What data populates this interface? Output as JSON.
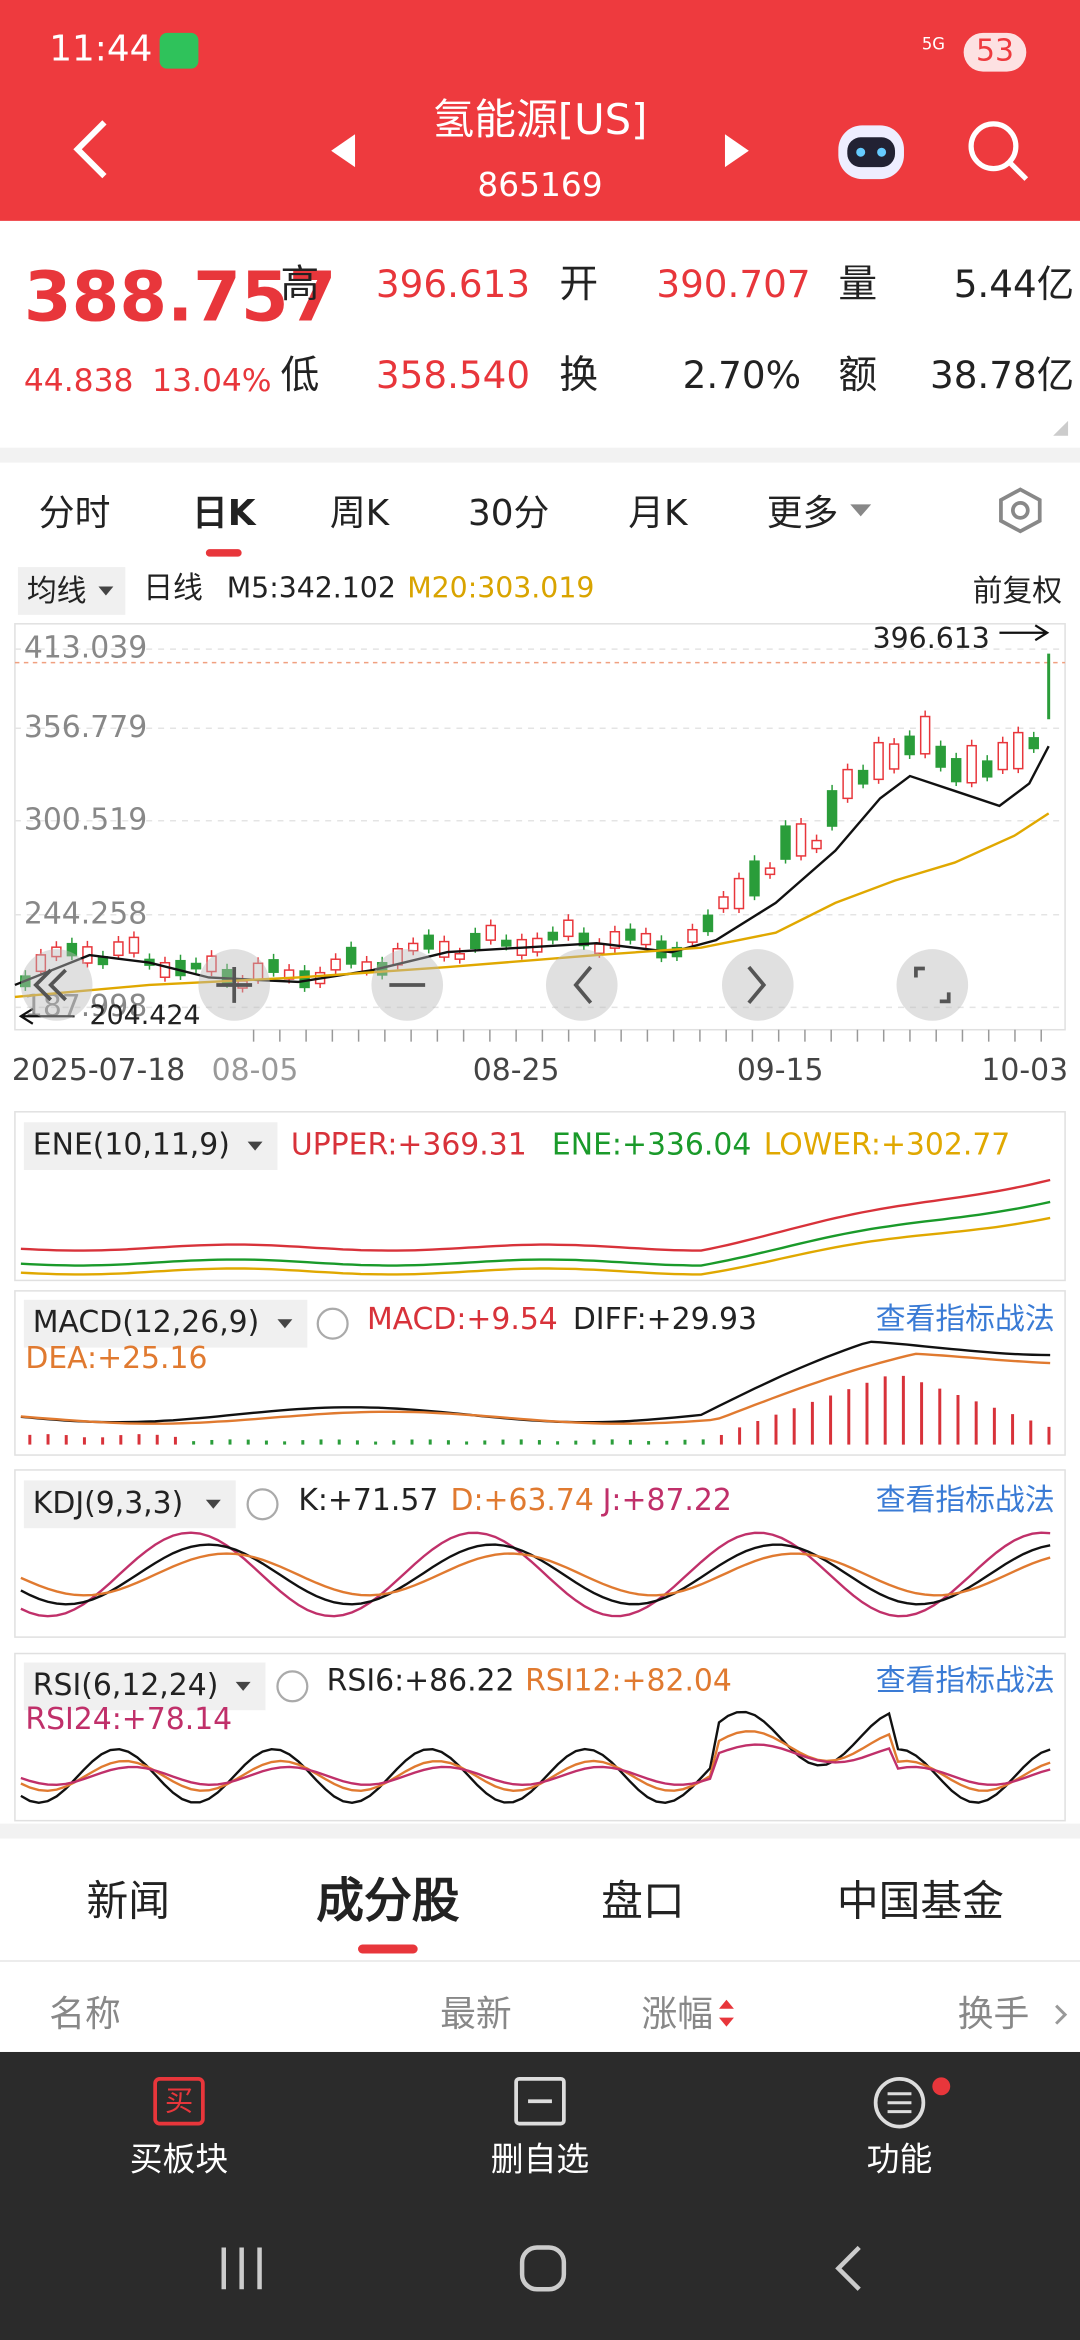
{
  "status": {
    "time": "11:44",
    "network": "5G",
    "battery": "53"
  },
  "header": {
    "title": "氢能源[US]",
    "code": "865169"
  },
  "quote": {
    "price": "388.757",
    "change": "44.838",
    "pct": "13.04%",
    "fields": [
      {
        "label": "高",
        "value": "396.613"
      },
      {
        "label": "开",
        "value": "390.707"
      },
      {
        "label": "量",
        "value": "5.44亿"
      },
      {
        "label": "低",
        "value": "358.540"
      },
      {
        "label": "换",
        "value": "2.70%"
      },
      {
        "label": "额",
        "value": "38.78亿"
      }
    ]
  },
  "tabs": [
    "分时",
    "日K",
    "周K",
    "30分",
    "月K",
    "更多"
  ],
  "ma_bar": {
    "selector": "均线",
    "period": "日线",
    "m5": "M5:342.102",
    "m20": "M20:303.019",
    "adjust": "前复权"
  },
  "chart": {
    "y_labels": [
      "413.039",
      "356.779",
      "300.519",
      "244.258",
      "187.998"
    ],
    "high_note": "396.613",
    "low_note": "204.424",
    "dates": [
      "2025-07-18",
      "08-05",
      "08-25",
      "09-15",
      "10-03"
    ]
  },
  "indicators": {
    "ene": {
      "name": "ENE(10,11,9)",
      "upper": "UPPER:+369.31",
      "mid": "ENE:+336.04",
      "lower": "LOWER:+302.77"
    },
    "macd": {
      "name": "MACD(12,26,9)",
      "macd": "MACD:+9.54",
      "diff": "DIFF:+29.93",
      "dea": "DEA:+25.16",
      "link": "查看指标战法"
    },
    "kdj": {
      "name": "KDJ(9,3,3)",
      "k": "K:+71.57",
      "d": "D:+63.74",
      "j": "J:+87.22",
      "link": "查看指标战法"
    },
    "rsi": {
      "name": "RSI(6,12,24)",
      "rsi6": "RSI6:+86.22",
      "rsi12": "RSI12:+82.04",
      "rsi24": "RSI24:+78.14",
      "link": "查看指标战法"
    }
  },
  "section_tabs": [
    "新闻",
    "成分股",
    "盘口",
    "中国基金"
  ],
  "list_header": [
    "名称",
    "最新",
    "涨幅",
    "换手"
  ],
  "bottom_bar": {
    "icon": "买",
    "actions": [
      "买板块",
      "删自选",
      "功能"
    ]
  }
}
